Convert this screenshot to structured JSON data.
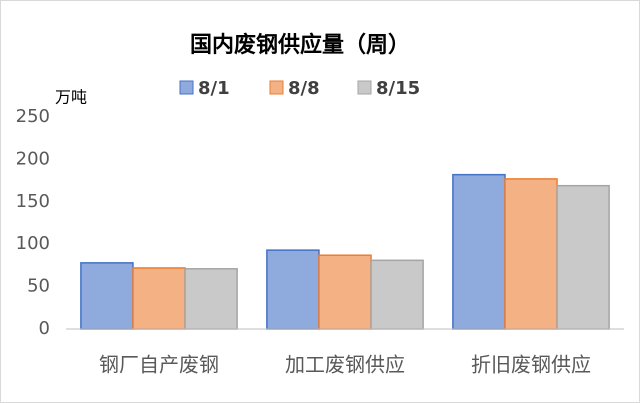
{
  "chart_data": {
    "type": "bar",
    "title": "国内废钢供应量（周）",
    "y_label": "万吨",
    "categories": [
      "钢厂自产废钢",
      "加工废钢供应",
      "折旧废钢供应"
    ],
    "series": [
      {
        "name": "8/1",
        "color": "#8faadc",
        "values": [
          78,
          93,
          182
        ]
      },
      {
        "name": "8/8",
        "color": "#f4b183",
        "values": [
          72,
          87,
          177
        ]
      },
      {
        "name": "8/15",
        "color": "#c9c9c9",
        "values": [
          71,
          81,
          169
        ]
      }
    ],
    "ylim": [
      0,
      250
    ],
    "yticks": [
      0,
      50,
      100,
      150,
      200,
      250
    ],
    "grid": false
  }
}
